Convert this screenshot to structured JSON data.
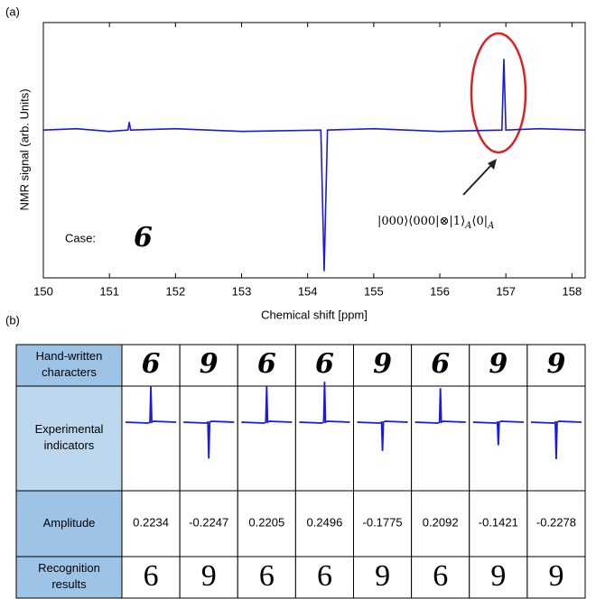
{
  "chart_data": {
    "type": "line",
    "panel_label": "(a)",
    "xlabel": "Chemical  shift  [ppm]",
    "ylabel": "NMR  signal  (arb. Units)",
    "x": [
      150,
      150.5,
      151,
      151.28,
      151.3,
      151.32,
      152,
      153,
      154.2,
      154.25,
      154.3,
      155,
      156,
      156.94,
      156.97,
      157,
      157.5,
      158.2
    ],
    "values": [
      0,
      0.01,
      -0.01,
      0,
      0.06,
      0,
      0.01,
      -0.01,
      0,
      -1.05,
      0,
      0.01,
      -0.01,
      0,
      0.53,
      0,
      0.01,
      0
    ],
    "color": "#1a1adb",
    "xlim": [
      150,
      158.2
    ],
    "xticks": [
      150,
      151,
      152,
      153,
      154,
      155,
      156,
      157,
      158
    ],
    "ylim": [
      -1.1,
      0.8
    ],
    "case_label": "Case:",
    "case_digit": "6",
    "formula_parts": [
      "|000⟩⟨000|⊗|1⟩",
      "A",
      "⟨0|",
      "A"
    ]
  },
  "table": {
    "panel_label": "(b)",
    "row_headers": [
      "Hand-written characters",
      "Experimental indicators",
      "Amplitude",
      "Recognition results"
    ],
    "handwritten": [
      "6",
      "9",
      "6",
      "6",
      "9",
      "6",
      "9",
      "9"
    ],
    "amplitudes": [
      0.2234,
      -0.2247,
      0.2205,
      0.2496,
      -0.1775,
      0.2092,
      -0.1421,
      -0.2278
    ],
    "results": [
      6,
      9,
      6,
      6,
      9,
      6,
      9,
      9
    ]
  }
}
